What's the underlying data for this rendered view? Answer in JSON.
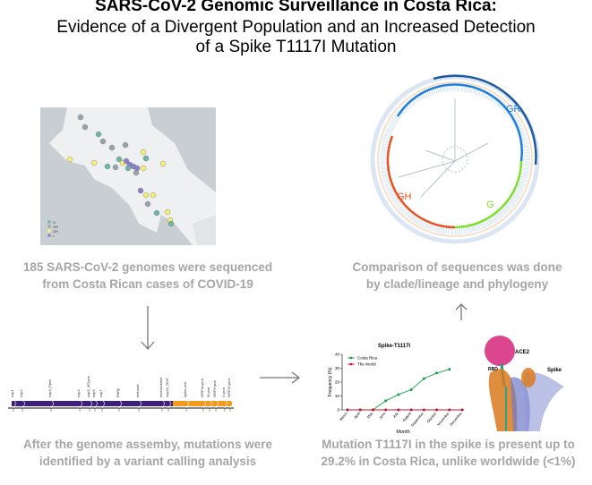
{
  "title": {
    "line1": "SARS-CoV-2 Genomic Surveillance in Costa Rica:",
    "line2": "Evidence of a Divergent Population and an Increased Detection",
    "line3": "of a Spike T1117I Mutation"
  },
  "map_panel": {
    "legend": [
      {
        "label": "G",
        "color": "#6fb7a5"
      },
      {
        "label": "GR",
        "color": "#9aa3ad"
      },
      {
        "label": "GH",
        "color": "#f3ef7a"
      },
      {
        "label": "L",
        "color": "#8a7fc9"
      }
    ],
    "caption_line1": "185 SARS-CoV-2 genomes were sequenced",
    "caption_line2": "from Costa Rican cases of COVID-19"
  },
  "tree_panel": {
    "clades": [
      {
        "label": "GR",
        "color": "#1f7fe0"
      },
      {
        "label": "G",
        "color": "#7fe02a"
      },
      {
        "label": "GH",
        "color": "#e8531f"
      }
    ],
    "caption_line1": "Comparison of sequences was done",
    "caption_line2": "by clade/lineage and phylogeny"
  },
  "genome_panel": {
    "genes_top": [
      "nsp1",
      "nsp2",
      "nsp3_Plpro",
      "nsp4",
      "nsp5_3CLpro",
      "nsp6",
      "nsp7",
      "RdRp",
      "helicase",
      "exonuclease",
      "nsp16_OMT",
      "spike prot",
      "ORF3a prot",
      "M prot",
      "ORF6 prot",
      "N prot",
      "ORF10 prot"
    ],
    "colors": {
      "orf1ab": "#3b1f7a",
      "structural": "#f39a1d"
    },
    "caption_line1": "After the genome assemby, mutations were",
    "caption_line2": "identified by a variant calling analysis"
  },
  "structure_panel": {
    "labels": {
      "ace2": "ACE2",
      "rbd": "RBD",
      "spike": "Spike"
    },
    "caption_line1": "Mutation T1117I in the spike is present up to",
    "caption_line2": "29.2% in Costa Rica, unlike worldwide (<1%)"
  },
  "chart_data": {
    "type": "line",
    "title": "Spike-T1117I",
    "xlabel": "Month",
    "ylabel": "Frequency (%)",
    "categories": [
      "March",
      "April",
      "May",
      "June",
      "July",
      "August",
      "September",
      "October",
      "November",
      "December"
    ],
    "ylim": [
      0,
      40
    ],
    "yticks": [
      0,
      10,
      20,
      30,
      40
    ],
    "legend_position": "top-left",
    "series": [
      {
        "name": "Costa Rica",
        "color": "#1a9e4a",
        "values": [
          0,
          0,
          0,
          6.5,
          11,
          14.5,
          22.5,
          26.5,
          29.2,
          null
        ]
      },
      {
        "name": "The World",
        "color": "#c0142c",
        "values": [
          0,
          0,
          0,
          0,
          0,
          0,
          0,
          0,
          0,
          0
        ]
      }
    ]
  }
}
